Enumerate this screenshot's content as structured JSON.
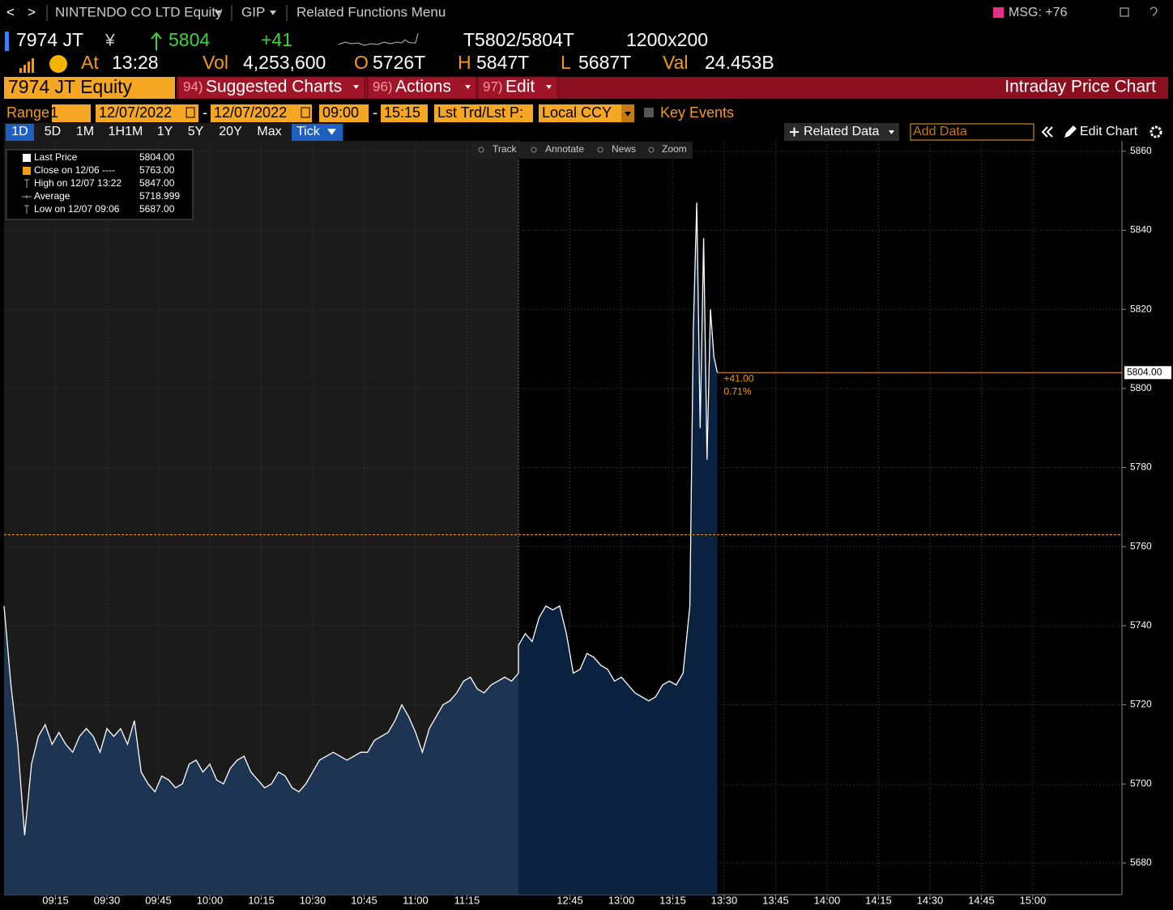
{
  "nav": {
    "back": "<",
    "forward": ">",
    "security": "NINTENDO CO LTD Equity",
    "gip": "GIP",
    "menu": "Related Functions Menu",
    "msg": "MSG: +76"
  },
  "quote": {
    "ticker": "7974 JT",
    "currency": "¥",
    "last": "5804",
    "change": "+41",
    "bid_ask": "T5802/5804T",
    "size": "1200x200"
  },
  "stats": {
    "at_label": "At",
    "time": "13:28",
    "vol_label": "Vol",
    "vol": "4,253,600",
    "open_label": "O",
    "open": "5726T",
    "high_label": "H",
    "high": "5847T",
    "low_label": "L",
    "low": "5687T",
    "val_label": "Val",
    "val": "24.453B"
  },
  "toolbar": {
    "security": "7974 JT Equity",
    "menus": [
      {
        "number": "94)",
        "label": "Suggested Charts"
      },
      {
        "number": "96)",
        "label": "Actions"
      },
      {
        "number": "97)",
        "label": "Edit"
      }
    ],
    "title": "Intraday Price Chart"
  },
  "controls": {
    "range_label": "Range",
    "range": "1",
    "start_date": "12/07/2022",
    "date_sep": "-",
    "end_date": "12/07/2022",
    "start_time": "09:00",
    "time_sep": "-",
    "end_time": "15:15",
    "price_type": "Lst Trd/Lst P:",
    "currency": "Local CCY",
    "key_events": "Key Events"
  },
  "periods": [
    "1D",
    "5D",
    "1M",
    "1H1M",
    "1Y",
    "5Y",
    "20Y",
    "Max",
    "Tick"
  ],
  "chart_actions": {
    "related": "Related Data",
    "add_data": "Add Data",
    "edit": "Edit Chart"
  },
  "chart_tools": [
    "Track",
    "Annotate",
    "News",
    "Zoom"
  ],
  "legend": [
    {
      "label": "Last Price",
      "value": "5804.00"
    },
    {
      "label": "Close on 12/06 ----",
      "value": "5763.00"
    },
    {
      "label": "High on 12/07 13:22",
      "value": "5847.00"
    },
    {
      "label": "Average",
      "value": "5718.999"
    },
    {
      "label": "Low on 12/07 09:06",
      "value": "5687.00"
    }
  ],
  "chart_data": {
    "type": "area",
    "x": [
      "09:00",
      "09:02",
      "09:04",
      "09:06",
      "09:08",
      "09:10",
      "09:12",
      "09:14",
      "09:16",
      "09:18",
      "09:20",
      "09:22",
      "09:24",
      "09:26",
      "09:28",
      "09:30",
      "09:32",
      "09:34",
      "09:36",
      "09:38",
      "09:40",
      "09:42",
      "09:44",
      "09:46",
      "09:48",
      "09:50",
      "09:52",
      "09:54",
      "09:56",
      "09:58",
      "10:00",
      "10:02",
      "10:04",
      "10:06",
      "10:08",
      "10:10",
      "10:12",
      "10:14",
      "10:16",
      "10:18",
      "10:20",
      "10:22",
      "10:24",
      "10:26",
      "10:28",
      "10:30",
      "10:32",
      "10:34",
      "10:36",
      "10:38",
      "10:40",
      "10:42",
      "10:44",
      "10:46",
      "10:48",
      "10:50",
      "10:52",
      "10:54",
      "10:56",
      "10:58",
      "11:00",
      "11:02",
      "11:04",
      "11:06",
      "11:08",
      "11:10",
      "11:12",
      "11:14",
      "11:16",
      "11:18",
      "11:20",
      "11:22",
      "11:24",
      "11:26",
      "11:28",
      "11:30",
      "12:30",
      "12:32",
      "12:34",
      "12:36",
      "12:38",
      "12:40",
      "12:42",
      "12:44",
      "12:46",
      "12:48",
      "12:50",
      "12:52",
      "12:54",
      "12:56",
      "12:58",
      "13:00",
      "13:02",
      "13:04",
      "13:06",
      "13:08",
      "13:10",
      "13:12",
      "13:14",
      "13:16",
      "13:18",
      "13:20",
      "13:21",
      "13:22",
      "13:23",
      "13:24",
      "13:25",
      "13:26",
      "13:27",
      "13:28"
    ],
    "series": [
      {
        "color": "#ffffff",
        "area_colors": [
          "#1d3553",
          "#0b2140"
        ],
        "values": [
          5745,
          5725,
          5710,
          5687,
          5705,
          5712,
          5715,
          5710,
          5713,
          5710,
          5708,
          5712,
          5714,
          5712,
          5708,
          5714,
          5712,
          5714,
          5710,
          5716,
          5703,
          5700,
          5698,
          5702,
          5701,
          5699,
          5700,
          5705,
          5706,
          5703,
          5705,
          5701,
          5700,
          5704,
          5706,
          5707,
          5703,
          5701,
          5699,
          5700,
          5703,
          5702,
          5699,
          5698,
          5700,
          5703,
          5706,
          5707,
          5708,
          5707,
          5706,
          5707,
          5708,
          5708,
          5711,
          5712,
          5713,
          5716,
          5720,
          5717,
          5713,
          5708,
          5714,
          5717,
          5720,
          5721,
          5723,
          5726,
          5727,
          5724,
          5723,
          5725,
          5726,
          5727,
          5726,
          5728,
          5735,
          5738,
          5736,
          5742,
          5745,
          5744,
          5745,
          5738,
          5728,
          5729,
          5733,
          5732,
          5730,
          5729,
          5726,
          5727,
          5725,
          5723,
          5722,
          5721,
          5722,
          5725,
          5726,
          5725,
          5728,
          5745,
          5815,
          5847,
          5790,
          5838,
          5782,
          5820,
          5808,
          5804
        ]
      }
    ],
    "xlim": [
      "09:00",
      "15:26"
    ],
    "session_break": [
      "11:30",
      "12:30"
    ],
    "xticks": [
      "09:15",
      "09:30",
      "09:45",
      "10:00",
      "10:15",
      "10:30",
      "10:45",
      "11:00",
      "11:15",
      "12:45",
      "13:00",
      "13:15",
      "13:30",
      "13:45",
      "14:00",
      "14:15",
      "14:30",
      "14:45",
      "15:00"
    ],
    "ylim": [
      5672,
      5862
    ],
    "yticks": [
      5680,
      5700,
      5720,
      5740,
      5760,
      5780,
      5800,
      5820,
      5840,
      5860
    ],
    "grid": true,
    "last_price": 5804,
    "last_price_label": "5804.00",
    "previous_close": 5763,
    "reference_color": "#f39c12",
    "change_label": "+41.00",
    "change_pct_label": "0.71%"
  }
}
